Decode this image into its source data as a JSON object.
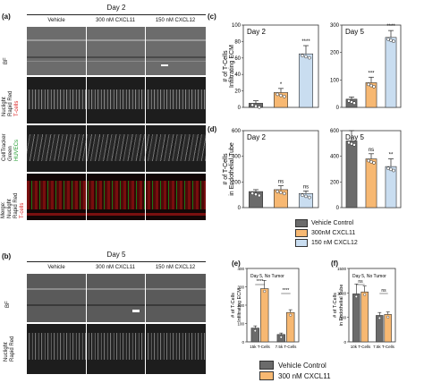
{
  "panel_a": {
    "letter": "(a)",
    "header": "Day 2",
    "columns": [
      "Vehicle",
      "300 nM CXCL11",
      "150 nM CXCL12"
    ],
    "rows": [
      {
        "line1": "BF",
        "line2": "",
        "line3": "",
        "line4": ""
      },
      {
        "line1": "Nuclight",
        "line2": "Rapid Red",
        "line3": "T-cells",
        "line4": ""
      },
      {
        "line1": "CellTracker",
        "line2": "Green",
        "line3": "HUVECs",
        "line4": ""
      },
      {
        "line1": "Merge:",
        "line2": "Nuclight",
        "line3": "Rapid Red",
        "line4": "T-cells"
      }
    ]
  },
  "panel_b": {
    "letter": "(b)",
    "header": "Day 5",
    "columns": [
      "Vehicle",
      "300 nM CXCL11",
      "150 nM CXCL12"
    ],
    "rows": [
      {
        "line1": "BF",
        "line2": ""
      },
      {
        "line1": "Nuclight",
        "line2": "Rapid Red"
      }
    ]
  },
  "legend_main": {
    "entries": [
      "Vehicle Control",
      "300nM CXCL11",
      "150 nM CXCL12"
    ],
    "colors": [
      "#6b6b6b",
      "#f7b872",
      "#c9ddf0"
    ]
  },
  "legend_bottom": {
    "entries": [
      "Vehicle Control",
      "300 nM CXCL11"
    ],
    "colors": [
      "#6b6b6b",
      "#f7b872"
    ]
  },
  "chart_data": [
    {
      "id": "c-day2",
      "panel": "(c)",
      "type": "bar",
      "title": "Day 2",
      "ylabel": "# of T-Cells Infiltrating ECM",
      "ylim": [
        0,
        100
      ],
      "yticks": [
        0,
        20,
        40,
        60,
        80,
        100
      ],
      "categories": [
        "Vehicle",
        "300 nM CXCL11",
        "150 nM CXCL12"
      ],
      "values": [
        5,
        18,
        65
      ],
      "errors": [
        3,
        5,
        10
      ],
      "colors": [
        "#6b6b6b",
        "#f7b872",
        "#c9ddf0"
      ],
      "annotations": [
        "",
        "*",
        "****"
      ]
    },
    {
      "id": "c-day5",
      "panel": "",
      "type": "bar",
      "title": "Day 5",
      "ylabel": "",
      "ylim": [
        0,
        300
      ],
      "yticks": [
        0,
        100,
        200,
        300
      ],
      "categories": [
        "Vehicle",
        "300 nM CXCL11",
        "150 nM CXCL12"
      ],
      "values": [
        30,
        90,
        255
      ],
      "errors": [
        8,
        20,
        25
      ],
      "colors": [
        "#6b6b6b",
        "#f7b872",
        "#c9ddf0"
      ],
      "annotations": [
        "",
        "***",
        "****"
      ]
    },
    {
      "id": "d-day2",
      "panel": "(d)",
      "type": "bar",
      "title": "Day 2",
      "ylabel": "# of T-Cells in Endothelial Tube",
      "ylim": [
        0,
        600
      ],
      "yticks": [
        0,
        200,
        400,
        600
      ],
      "categories": [
        "Vehicle",
        "300 nM CXCL11",
        "150 nM CXCL12"
      ],
      "values": [
        125,
        140,
        110
      ],
      "errors": [
        15,
        30,
        20
      ],
      "colors": [
        "#6b6b6b",
        "#f7b872",
        "#c9ddf0"
      ],
      "annotations": [
        "",
        "ns",
        "ns"
      ]
    },
    {
      "id": "d-day5",
      "panel": "",
      "type": "bar",
      "title": "Day 5",
      "ylabel": "",
      "ylim": [
        0,
        600
      ],
      "yticks": [
        0,
        200,
        400,
        600
      ],
      "categories": [
        "Vehicle",
        "300 nM CXCL11",
        "150 nM CXCL12"
      ],
      "values": [
        520,
        380,
        320
      ],
      "errors": [
        80,
        40,
        60
      ],
      "colors": [
        "#6b6b6b",
        "#f7b872",
        "#c9ddf0"
      ],
      "annotations": [
        "",
        "ns",
        "**"
      ]
    },
    {
      "id": "e",
      "panel": "(e)",
      "type": "bar",
      "title": "Day 5, No Tumor",
      "ylabel": "# of T-Cells Infiltrating ECM",
      "ylim": [
        0,
        400
      ],
      "yticks": [
        0,
        100,
        200,
        300,
        400
      ],
      "groups": [
        "15k T-Cells",
        "7.5k T-Cells"
      ],
      "series": [
        {
          "values": [
            75,
            40
          ],
          "errors": [
            12,
            8
          ],
          "color": "#6b6b6b"
        },
        {
          "values": [
            290,
            160
          ],
          "errors": [
            45,
            15
          ],
          "color": "#f7b872"
        }
      ],
      "annotations": [
        "****",
        "****"
      ]
    },
    {
      "id": "f",
      "panel": "(f)",
      "type": "bar",
      "title": "Day 5, No Tumor",
      "ylabel": "# of T-Cells in Endothelial Tube",
      "ylim": [
        0,
        1500
      ],
      "yticks": [
        0,
        500,
        1000,
        1500
      ],
      "groups": [
        "10k T-Cells",
        "7.5k T-Cells"
      ],
      "series": [
        {
          "values": [
            980,
            540
          ],
          "errors": [
            200,
            60
          ],
          "color": "#6b6b6b"
        },
        {
          "values": [
            1020,
            560
          ],
          "errors": [
            120,
            50
          ],
          "color": "#f7b872"
        }
      ],
      "annotations": [
        "ns",
        "ns"
      ]
    }
  ]
}
